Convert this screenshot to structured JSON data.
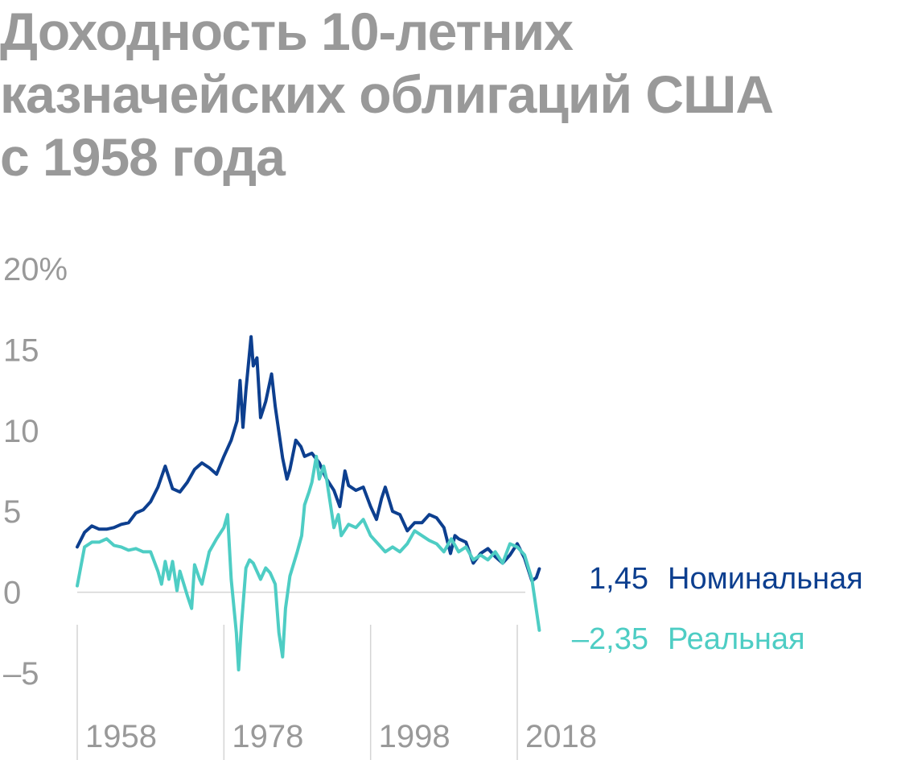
{
  "chart_data": {
    "type": "line",
    "title": "Доходность 10-летних казначейских облигаций США с 1958 года",
    "title_lines": [
      "Доходность 10-летних",
      "казначейских облигаций США",
      "с 1958 года"
    ],
    "xlabel": "",
    "ylabel": "",
    "x_ticks": [
      "1958",
      "1978",
      "1998",
      "2018"
    ],
    "y_ticks": [
      "20%",
      "15",
      "10",
      "5",
      "0",
      "–5"
    ],
    "xlim": [
      1958,
      2018
    ],
    "ylim": [
      -5,
      20
    ],
    "grid": "vertical lines at x ticks",
    "series": [
      {
        "name": "Номинальная",
        "end_value_label": "1,45",
        "color": "#0d3f8f",
        "points": [
          [
            1958.0,
            2.8
          ],
          [
            1959.0,
            3.7
          ],
          [
            1960.0,
            4.1
          ],
          [
            1961.0,
            3.9
          ],
          [
            1962.0,
            3.9
          ],
          [
            1963.0,
            4.0
          ],
          [
            1964.0,
            4.2
          ],
          [
            1965.0,
            4.3
          ],
          [
            1966.0,
            4.9
          ],
          [
            1967.0,
            5.1
          ],
          [
            1968.0,
            5.6
          ],
          [
            1969.0,
            6.5
          ],
          [
            1970.0,
            7.8
          ],
          [
            1971.0,
            6.4
          ],
          [
            1972.0,
            6.2
          ],
          [
            1973.0,
            6.8
          ],
          [
            1974.0,
            7.6
          ],
          [
            1975.0,
            8.0
          ],
          [
            1976.0,
            7.7
          ],
          [
            1977.0,
            7.3
          ],
          [
            1978.0,
            8.4
          ],
          [
            1979.0,
            9.4
          ],
          [
            1979.8,
            10.6
          ],
          [
            1980.2,
            13.1
          ],
          [
            1980.6,
            10.2
          ],
          [
            1981.0,
            12.5
          ],
          [
            1981.7,
            15.8
          ],
          [
            1982.0,
            14.0
          ],
          [
            1982.5,
            14.5
          ],
          [
            1983.0,
            10.8
          ],
          [
            1983.7,
            11.8
          ],
          [
            1984.5,
            13.5
          ],
          [
            1985.0,
            11.5
          ],
          [
            1986.0,
            8.3
          ],
          [
            1986.6,
            7.0
          ],
          [
            1987.0,
            7.6
          ],
          [
            1987.8,
            9.4
          ],
          [
            1988.5,
            9.0
          ],
          [
            1989.0,
            8.4
          ],
          [
            1990.0,
            8.6
          ],
          [
            1991.0,
            8.0
          ],
          [
            1992.0,
            7.0
          ],
          [
            1993.0,
            6.3
          ],
          [
            1993.8,
            5.3
          ],
          [
            1994.5,
            7.5
          ],
          [
            1995.0,
            6.6
          ],
          [
            1996.0,
            6.3
          ],
          [
            1997.0,
            6.5
          ],
          [
            1998.0,
            5.3
          ],
          [
            1998.8,
            4.5
          ],
          [
            1999.5,
            5.8
          ],
          [
            2000.0,
            6.5
          ],
          [
            2001.0,
            5.0
          ],
          [
            2002.0,
            4.8
          ],
          [
            2003.0,
            3.8
          ],
          [
            2004.0,
            4.3
          ],
          [
            2005.0,
            4.3
          ],
          [
            2006.0,
            4.8
          ],
          [
            2007.0,
            4.6
          ],
          [
            2008.0,
            4.0
          ],
          [
            2008.9,
            2.4
          ],
          [
            2009.5,
            3.5
          ],
          [
            2010.0,
            3.3
          ],
          [
            2011.0,
            3.1
          ],
          [
            2012.0,
            1.8
          ],
          [
            2013.0,
            2.4
          ],
          [
            2014.0,
            2.7
          ],
          [
            2015.0,
            2.2
          ],
          [
            2016.0,
            1.8
          ],
          [
            2017.0,
            2.3
          ],
          [
            2018.0,
            3.0
          ],
          [
            2019.0,
            2.1
          ],
          [
            2020.0,
            0.7
          ],
          [
            2020.6,
            0.9
          ],
          [
            2021.0,
            1.45
          ]
        ]
      },
      {
        "name": "Реальная",
        "end_value_label": "–2,35",
        "color": "#4ecdc4",
        "points": [
          [
            1958.0,
            0.4
          ],
          [
            1959.0,
            2.8
          ],
          [
            1960.0,
            3.1
          ],
          [
            1961.0,
            3.1
          ],
          [
            1962.0,
            3.3
          ],
          [
            1963.0,
            2.9
          ],
          [
            1964.0,
            2.8
          ],
          [
            1965.0,
            2.6
          ],
          [
            1966.0,
            2.7
          ],
          [
            1967.0,
            2.5
          ],
          [
            1968.0,
            2.5
          ],
          [
            1969.0,
            1.3
          ],
          [
            1969.5,
            0.5
          ],
          [
            1970.0,
            1.9
          ],
          [
            1970.5,
            0.8
          ],
          [
            1971.0,
            1.9
          ],
          [
            1971.6,
            0.1
          ],
          [
            1972.0,
            1.3
          ],
          [
            1973.0,
            -0.2
          ],
          [
            1973.6,
            -1.0
          ],
          [
            1974.0,
            1.7
          ],
          [
            1974.7,
            0.8
          ],
          [
            1975.0,
            0.5
          ],
          [
            1976.0,
            2.5
          ],
          [
            1977.0,
            3.3
          ],
          [
            1978.0,
            4.0
          ],
          [
            1978.5,
            4.8
          ],
          [
            1979.0,
            0.8
          ],
          [
            1979.7,
            -2.5
          ],
          [
            1980.0,
            -4.8
          ],
          [
            1980.4,
            -2.0
          ],
          [
            1981.0,
            1.5
          ],
          [
            1981.5,
            2.0
          ],
          [
            1982.0,
            1.8
          ],
          [
            1983.0,
            0.8
          ],
          [
            1983.7,
            1.5
          ],
          [
            1984.3,
            1.2
          ],
          [
            1985.0,
            0.5
          ],
          [
            1985.5,
            -2.5
          ],
          [
            1986.0,
            -4.0
          ],
          [
            1986.4,
            -1.0
          ],
          [
            1987.0,
            1.0
          ],
          [
            1988.0,
            2.5
          ],
          [
            1988.6,
            3.5
          ],
          [
            1989.0,
            5.4
          ],
          [
            1989.6,
            6.2
          ],
          [
            1990.0,
            6.8
          ],
          [
            1990.6,
            8.4
          ],
          [
            1991.0,
            7.0
          ],
          [
            1991.6,
            7.8
          ],
          [
            1992.0,
            7.0
          ],
          [
            1993.0,
            4.0
          ],
          [
            1993.6,
            4.8
          ],
          [
            1994.0,
            3.5
          ],
          [
            1995.0,
            4.2
          ],
          [
            1996.0,
            4.0
          ],
          [
            1997.0,
            4.5
          ],
          [
            1998.0,
            3.5
          ],
          [
            1999.0,
            3.0
          ],
          [
            2000.0,
            2.5
          ],
          [
            2001.0,
            2.8
          ],
          [
            2002.0,
            2.5
          ],
          [
            2003.0,
            3.0
          ],
          [
            2004.0,
            3.8
          ],
          [
            2005.0,
            3.5
          ],
          [
            2006.0,
            3.2
          ],
          [
            2007.0,
            3.0
          ],
          [
            2008.0,
            2.5
          ],
          [
            2009.0,
            3.3
          ],
          [
            2010.0,
            2.5
          ],
          [
            2011.0,
            2.8
          ],
          [
            2012.0,
            2.0
          ],
          [
            2013.0,
            2.3
          ],
          [
            2014.0,
            2.0
          ],
          [
            2015.0,
            2.5
          ],
          [
            2016.0,
            1.8
          ],
          [
            2017.0,
            3.0
          ],
          [
            2018.0,
            2.8
          ],
          [
            2019.0,
            2.3
          ],
          [
            2020.0,
            0.8
          ],
          [
            2021.0,
            -2.35
          ]
        ]
      }
    ]
  }
}
